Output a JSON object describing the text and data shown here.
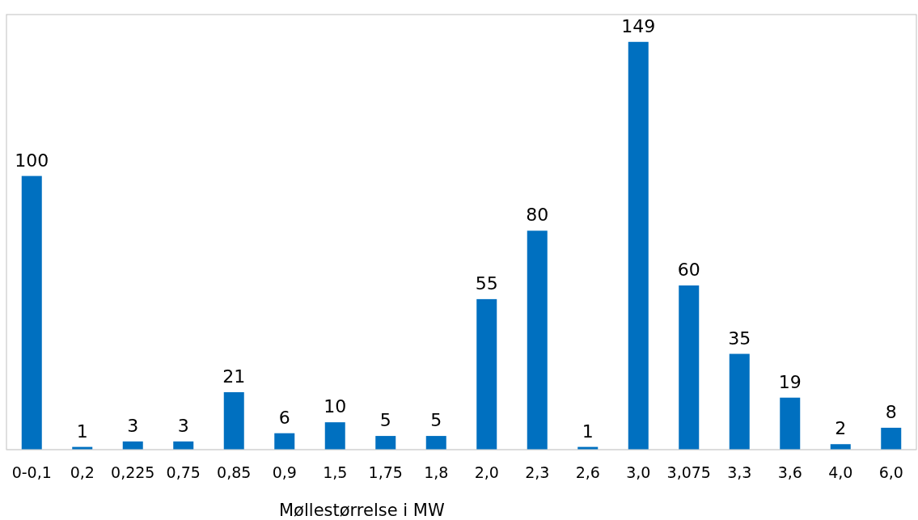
{
  "chart_data": {
    "type": "bar",
    "xlabel": "Møllestørrelse i MW",
    "categories": [
      "0-0,1",
      "0,2",
      "0,225",
      "0,75",
      "0,85",
      "0,9",
      "1,5",
      "1,75",
      "1,8",
      "2,0",
      "2,3",
      "2,6",
      "3,0",
      "3,075",
      "3,3",
      "3,6",
      "4,0",
      "6,0"
    ],
    "values": [
      100,
      1,
      3,
      3,
      21,
      6,
      10,
      5,
      5,
      55,
      80,
      1,
      149,
      60,
      35,
      19,
      2,
      8
    ],
    "color": "#0070c0",
    "data_labels": true
  }
}
